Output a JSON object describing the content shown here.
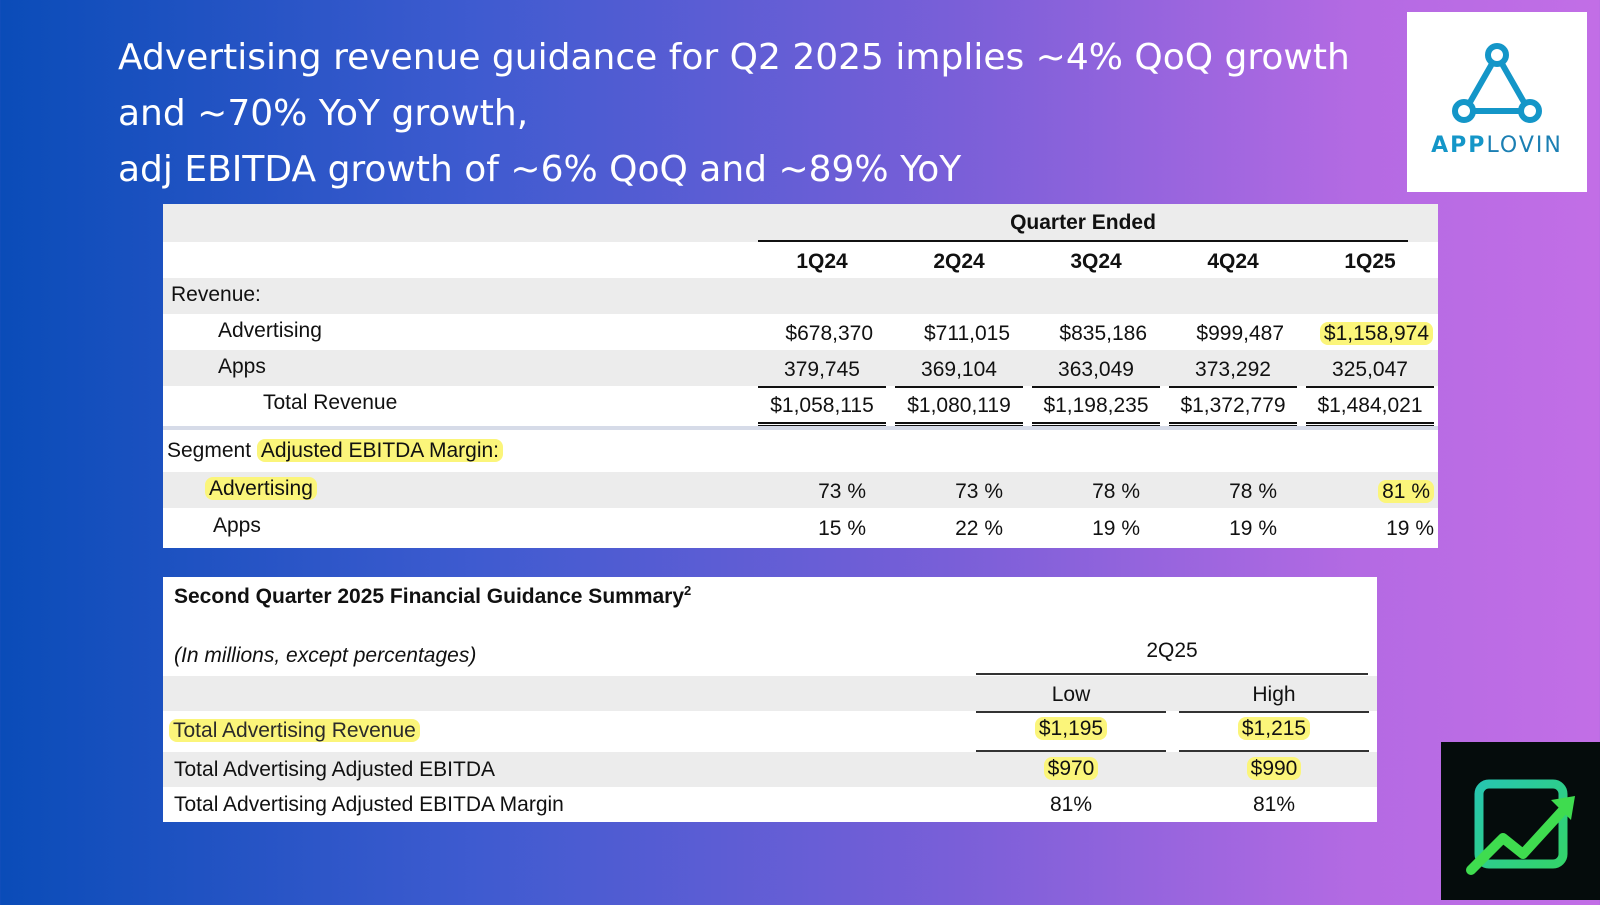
{
  "headline": {
    "line1": "Advertising revenue guidance for Q2 2025 implies ~4% QoQ growth",
    "line2": "and ~70% YoY growth,",
    "line3": "adj EBITDA growth of ~6% QoQ and ~89% YoY"
  },
  "logo": {
    "wordmark_a": "APP",
    "wordmark_b": "LOVIN",
    "accent": "#1496c8"
  },
  "table1": {
    "group_header": "Quarter Ended",
    "columns": [
      "1Q24",
      "2Q24",
      "3Q24",
      "4Q24",
      "1Q25"
    ],
    "revenue_label": "Revenue:",
    "rows": [
      {
        "label": "Advertising",
        "values": [
          "$678,370",
          "$711,015",
          "$835,186",
          "$999,487",
          "$1,158,974"
        ]
      },
      {
        "label": "Apps",
        "values": [
          "379,745",
          "369,104",
          "363,049",
          "373,292",
          "325,047"
        ]
      },
      {
        "label": "Total Revenue",
        "values": [
          "$1,058,115",
          "$1,080,119",
          "$1,198,235",
          "$1,372,779",
          "$1,484,021"
        ]
      }
    ],
    "segment_label_a": "Segment",
    "segment_label_b": "Adjusted EBITDA Margin:",
    "margin_rows": [
      {
        "label": "Advertising",
        "values": [
          "73 %",
          "73 %",
          "78 %",
          "78 %",
          "81 %"
        ]
      },
      {
        "label": "Apps",
        "values": [
          "15 %",
          "22 %",
          "19 %",
          "19 %",
          "19 %"
        ]
      }
    ]
  },
  "table2": {
    "title": "Second Quarter 2025 Financial Guidance Summary",
    "title_sup": "2",
    "subtitle": "(In millions, except percentages)",
    "period": "2Q25",
    "col_low": "Low",
    "col_high": "High",
    "rows": [
      {
        "label": "Total Advertising Revenue",
        "low": "$1,195",
        "high": "$1,215"
      },
      {
        "label": "Total Advertising Adjusted EBITDA",
        "low": "$970",
        "high": "$990"
      },
      {
        "label": "Total Advertising Adjusted EBITDA Margin",
        "low": "81%",
        "high": "81%"
      }
    ]
  },
  "colors": {
    "highlight": "#fbf57a",
    "row_grey": "#ececec"
  }
}
